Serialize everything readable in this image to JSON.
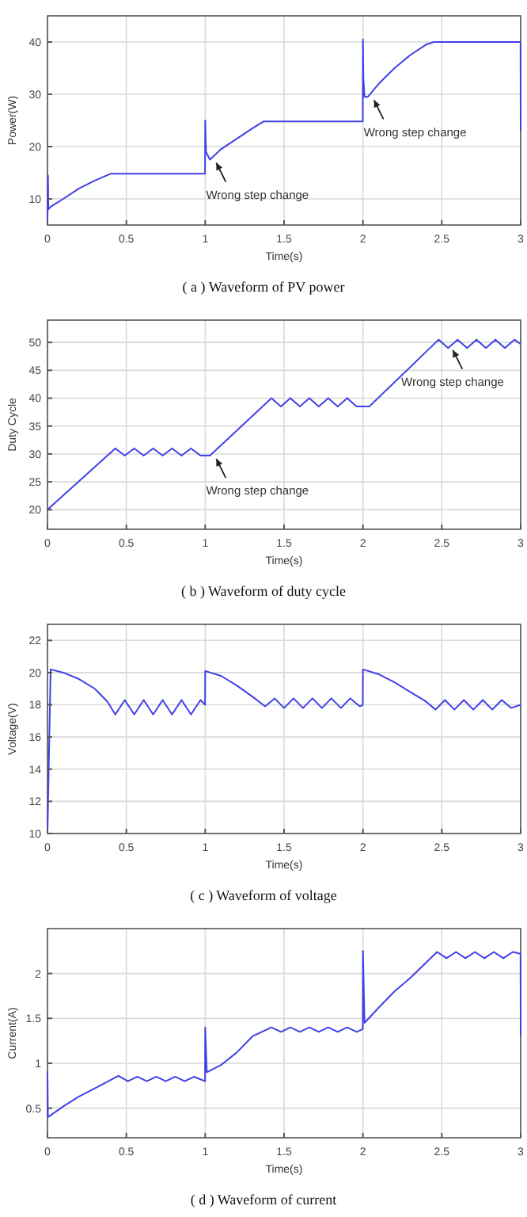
{
  "chart_data": [
    {
      "type": "line",
      "title": "( a ) Waveform of PV power",
      "xlabel": "Time(s)",
      "ylabel": "Power(W)",
      "xlim": [
        0,
        3
      ],
      "xticks": [
        0,
        0.5,
        1,
        1.5,
        2,
        2.5,
        3
      ],
      "ylim": [
        5,
        45
      ],
      "yticks": [
        10,
        20,
        30,
        40
      ],
      "grid": true,
      "x": [
        0,
        0.003,
        0.006,
        0.02,
        0.1,
        0.2,
        0.3,
        0.4,
        0.6,
        0.8,
        0.999,
        1.0,
        1.005,
        1.03,
        1.1,
        1.2,
        1.3,
        1.37,
        1.6,
        1.8,
        1.999,
        2.0,
        2.003,
        2.01,
        2.03,
        2.1,
        2.2,
        2.3,
        2.4,
        2.45,
        2.6,
        2.8,
        2.999,
        3.0
      ],
      "series": [
        {
          "color": "#4040e8",
          "values": [
            5,
            14.5,
            8,
            8.5,
            10,
            12,
            13.5,
            14.8,
            14.8,
            14.8,
            14.8,
            25,
            19,
            17.5,
            19.5,
            21.5,
            23.5,
            24.8,
            24.8,
            24.8,
            24.8,
            40.5,
            33,
            29.5,
            29.5,
            32,
            35,
            37.5,
            39.5,
            40,
            40,
            40,
            40,
            23
          ]
        }
      ],
      "annotations": [
        {
          "text": "Wrong step change",
          "x": 1.05,
          "y": 17.5
        },
        {
          "text": "Wrong step change",
          "x": 2.05,
          "y": 29.5
        }
      ]
    },
    {
      "type": "line",
      "title": "( b ) Waveform of duty cycle",
      "xlabel": "Time(s)",
      "ylabel": "Duty Cycle",
      "xlim": [
        0,
        3
      ],
      "xticks": [
        0,
        0.5,
        1,
        1.5,
        2,
        2.5,
        3
      ],
      "ylim": [
        16.5,
        54
      ],
      "yticks": [
        20,
        25,
        30,
        35,
        40,
        45,
        50
      ],
      "grid": true,
      "x": [
        0,
        0.43,
        0.49,
        0.55,
        0.61,
        0.67,
        0.73,
        0.79,
        0.85,
        0.91,
        0.97,
        1.03,
        1.42,
        1.48,
        1.54,
        1.6,
        1.66,
        1.72,
        1.78,
        1.84,
        1.9,
        1.96,
        2.04,
        2.48,
        2.54,
        2.6,
        2.66,
        2.72,
        2.78,
        2.84,
        2.9,
        2.96,
        3.0
      ],
      "series": [
        {
          "color": "#4040e8",
          "values": [
            20,
            31,
            29.7,
            31,
            29.7,
            31,
            29.7,
            31,
            29.7,
            31,
            29.7,
            29.7,
            40,
            38.5,
            40,
            38.5,
            40,
            38.5,
            40,
            38.5,
            40,
            38.5,
            38.5,
            50.5,
            49,
            50.5,
            49,
            50.5,
            49,
            50.5,
            49,
            50.5,
            49.7
          ]
        }
      ],
      "annotations": [
        {
          "text": "Wrong step change",
          "x": 1.05,
          "y": 29.7
        },
        {
          "text": "Wrong step change",
          "x": 2.55,
          "y": 49.2
        }
      ]
    },
    {
      "type": "line",
      "title": "( c ) Waveform of voltage",
      "xlabel": "Time(s)",
      "ylabel": "Voltage(V)",
      "xlim": [
        0,
        3
      ],
      "xticks": [
        0,
        0.5,
        1,
        1.5,
        2,
        2.5,
        3
      ],
      "ylim": [
        10,
        23
      ],
      "yticks": [
        10,
        12,
        14,
        16,
        18,
        20,
        22
      ],
      "grid": true,
      "x": [
        0,
        0.02,
        0.1,
        0.2,
        0.3,
        0.38,
        0.43,
        0.49,
        0.55,
        0.61,
        0.67,
        0.73,
        0.79,
        0.85,
        0.91,
        0.97,
        0.999,
        1.0,
        1.1,
        1.2,
        1.3,
        1.38,
        1.44,
        1.5,
        1.56,
        1.62,
        1.68,
        1.74,
        1.8,
        1.86,
        1.92,
        1.98,
        1.999,
        2.0,
        2.1,
        2.2,
        2.3,
        2.4,
        2.46,
        2.52,
        2.58,
        2.64,
        2.7,
        2.76,
        2.82,
        2.88,
        2.94,
        3.0
      ],
      "series": [
        {
          "color": "#4040e8",
          "values": [
            10,
            20.2,
            20.0,
            19.6,
            19.0,
            18.2,
            17.4,
            18.3,
            17.4,
            18.3,
            17.4,
            18.3,
            17.4,
            18.3,
            17.4,
            18.3,
            18.0,
            20.1,
            19.8,
            19.2,
            18.5,
            17.9,
            18.4,
            17.8,
            18.4,
            17.8,
            18.4,
            17.8,
            18.4,
            17.8,
            18.4,
            17.9,
            18.0,
            20.2,
            19.9,
            19.4,
            18.8,
            18.2,
            17.7,
            18.3,
            17.7,
            18.3,
            17.7,
            18.3,
            17.7,
            18.3,
            17.8,
            18.0
          ]
        }
      ]
    },
    {
      "type": "line",
      "title": "( d ) Waveform of current",
      "xlabel": "Time(s)",
      "ylabel": "Current(A)",
      "xlim": [
        0,
        3
      ],
      "xticks": [
        0,
        0.5,
        1,
        1.5,
        2,
        2.5,
        3
      ],
      "ylim": [
        0.17,
        2.5
      ],
      "yticks": [
        0.5,
        1,
        1.5,
        2
      ],
      "grid": true,
      "x": [
        0,
        0.003,
        0.02,
        0.1,
        0.2,
        0.3,
        0.45,
        0.51,
        0.57,
        0.63,
        0.69,
        0.75,
        0.81,
        0.87,
        0.93,
        0.999,
        1.0,
        1.01,
        1.1,
        1.2,
        1.3,
        1.42,
        1.48,
        1.54,
        1.6,
        1.66,
        1.72,
        1.78,
        1.84,
        1.9,
        1.96,
        1.999,
        2.0,
        2.01,
        2.1,
        2.2,
        2.3,
        2.4,
        2.47,
        2.53,
        2.59,
        2.65,
        2.71,
        2.77,
        2.83,
        2.89,
        2.95,
        2.999,
        3.0
      ],
      "series": [
        {
          "color": "#4040e8",
          "values": [
            0.9,
            0.4,
            0.42,
            0.52,
            0.63,
            0.72,
            0.86,
            0.8,
            0.85,
            0.8,
            0.85,
            0.8,
            0.85,
            0.8,
            0.85,
            0.8,
            1.4,
            0.9,
            0.98,
            1.12,
            1.3,
            1.4,
            1.35,
            1.4,
            1.35,
            1.4,
            1.35,
            1.4,
            1.35,
            1.4,
            1.35,
            1.38,
            2.25,
            1.45,
            1.62,
            1.8,
            1.95,
            2.12,
            2.24,
            2.17,
            2.24,
            2.17,
            2.24,
            2.17,
            2.24,
            2.17,
            2.24,
            2.22,
            1.3
          ]
        }
      ]
    }
  ]
}
